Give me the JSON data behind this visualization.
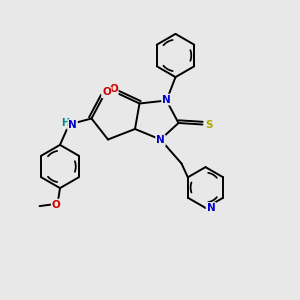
{
  "background_color": "#e8e8e8",
  "atom_colors": {
    "C": "#000000",
    "N": "#0000cc",
    "O": "#cc0000",
    "S": "#aaaa00",
    "H": "#008888"
  },
  "bond_color": "#000000",
  "figsize": [
    3.0,
    3.0
  ],
  "dpi": 100,
  "lw": 1.4,
  "fontsize": 7.5
}
